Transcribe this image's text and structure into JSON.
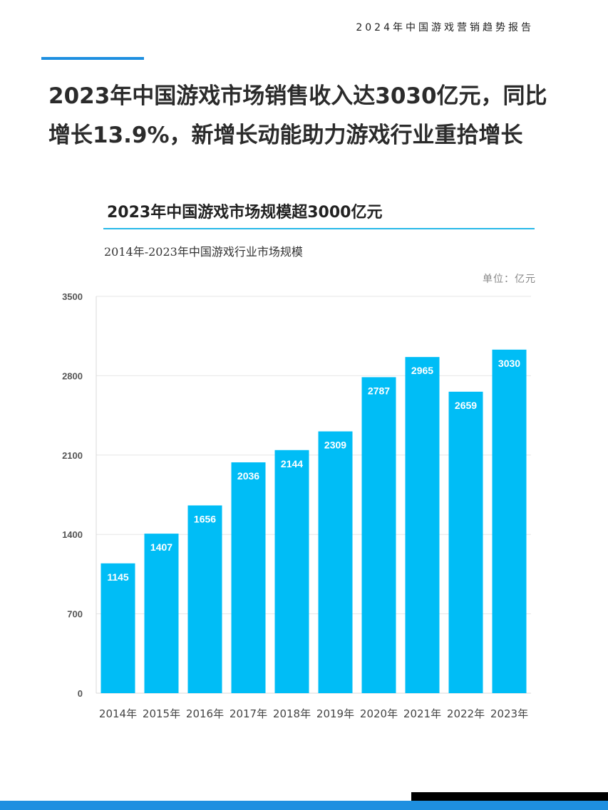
{
  "header": {
    "report_title": "2024年中国游戏营销趋势报告"
  },
  "headline": {
    "line1": "2023年中国游戏市场销售收入达3030亿元，同比",
    "line2": "增长13.9%，新增长动能助力游戏行业重拾增长"
  },
  "colors": {
    "accent": "#1e8fe0",
    "bar": "#00bdf6",
    "title_rule": "#27b8e8"
  },
  "chart_data": {
    "type": "bar",
    "title": "2023年中国游戏市场规模超3000亿元",
    "subtitle": "2014年-2023年中国游戏行业市场规模",
    "unit_label": "单位：亿元",
    "categories": [
      "2014年",
      "2015年",
      "2016年",
      "2017年",
      "2018年",
      "2019年",
      "2020年",
      "2021年",
      "2022年",
      "2023年"
    ],
    "values": [
      1145,
      1407,
      1656,
      2036,
      2144,
      2309,
      2787,
      2965,
      2659,
      3030
    ],
    "y_ticks": [
      0,
      700,
      1400,
      2100,
      2800,
      3500
    ],
    "ylim": [
      0,
      3500
    ],
    "xlabel": "",
    "ylabel": "",
    "grid": true,
    "data_labels": true
  }
}
